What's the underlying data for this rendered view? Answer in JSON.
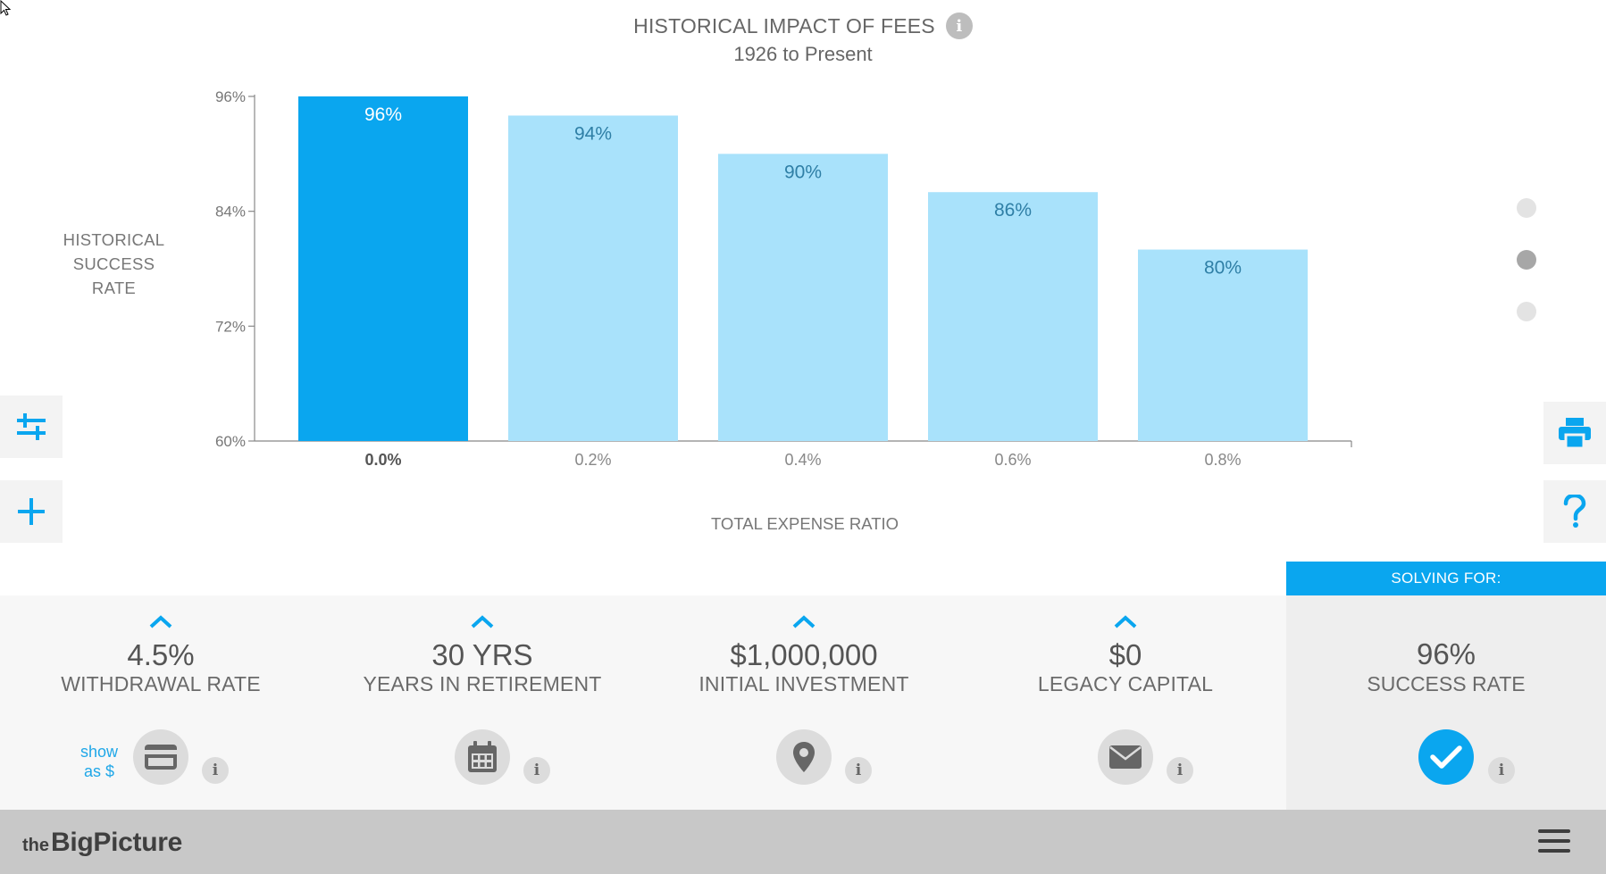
{
  "chart_data": {
    "type": "bar",
    "title": "HISTORICAL IMPACT OF FEES",
    "subtitle": "1926 to Present",
    "xlabel": "TOTAL EXPENSE RATIO",
    "ylabel": "HISTORICAL SUCCESS RATE",
    "ylim": [
      60,
      96
    ],
    "yticks": [
      "60%",
      "72%",
      "84%",
      "96%"
    ],
    "ytick_values": [
      60,
      72,
      84,
      96
    ],
    "categories": [
      "0.0%",
      "0.2%",
      "0.4%",
      "0.6%",
      "0.8%"
    ],
    "values": [
      96,
      94,
      90,
      86,
      80
    ],
    "labels": [
      "96%",
      "94%",
      "90%",
      "86%",
      "80%"
    ],
    "highlighted_index": 0,
    "colors": {
      "highlight": "#0aa6ef",
      "bar": "#a9e2fb",
      "highlight_label": "#ffffff",
      "label": "#2f7fa6",
      "axis": "#888888"
    }
  },
  "chart_info_icon": "info-icon",
  "ylabel_lines": [
    "HISTORICAL",
    "SUCCESS",
    "RATE"
  ],
  "side_buttons": {
    "adjust_icon": "sliders-icon",
    "add_icon": "plus-icon",
    "print_icon": "printer-icon",
    "help_icon": "question-icon"
  },
  "pager": {
    "count": 3,
    "active": 1
  },
  "params": [
    {
      "value": "4.5%",
      "label": "WITHDRAWAL RATE",
      "icon": "credit-card-icon",
      "show_as": [
        "show",
        "as $"
      ]
    },
    {
      "value": "30 YRS",
      "label": "YEARS IN RETIREMENT",
      "icon": "calendar-icon"
    },
    {
      "value": "$1,000,000",
      "label": "INITIAL INVESTMENT",
      "icon": "map-pin-icon"
    },
    {
      "value": "$0",
      "label": "LEGACY CAPITAL",
      "icon": "envelope-icon"
    }
  ],
  "solving": {
    "header": "SOLVING FOR:",
    "value": "96%",
    "label": "SUCCESS RATE",
    "icon": "checkmark-icon"
  },
  "info_glyph": "i",
  "footer": {
    "logo_the": "the",
    "logo_name": "BigPicture",
    "menu_icon": "hamburger-menu-icon"
  }
}
